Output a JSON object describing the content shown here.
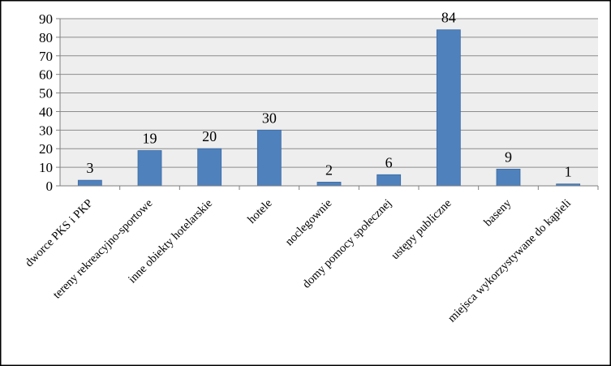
{
  "chart_data": {
    "type": "bar",
    "categories": [
      "dworce PKS i PKP",
      "tereny rekreacyjno-sportowe",
      "inne obiekty hotelarskie",
      "hotele",
      "noclegownie",
      "domy pomocy społecznej",
      "ustępy publiczne",
      "baseny",
      "miejsca wykorzystywane do kąpieli"
    ],
    "values": [
      3,
      19,
      20,
      30,
      2,
      6,
      84,
      9,
      1
    ],
    "title": "",
    "xlabel": "",
    "ylabel": "",
    "ylim": [
      0,
      90
    ],
    "yticks": [
      0,
      10,
      20,
      30,
      40,
      50,
      60,
      70,
      80,
      90
    ],
    "grid": true,
    "legend": "none",
    "bar_color": "#4f81bd",
    "bar_edge_color": "#3a6aa3",
    "plot_background": "#eeeeee",
    "frame_border_color": "#000000"
  }
}
